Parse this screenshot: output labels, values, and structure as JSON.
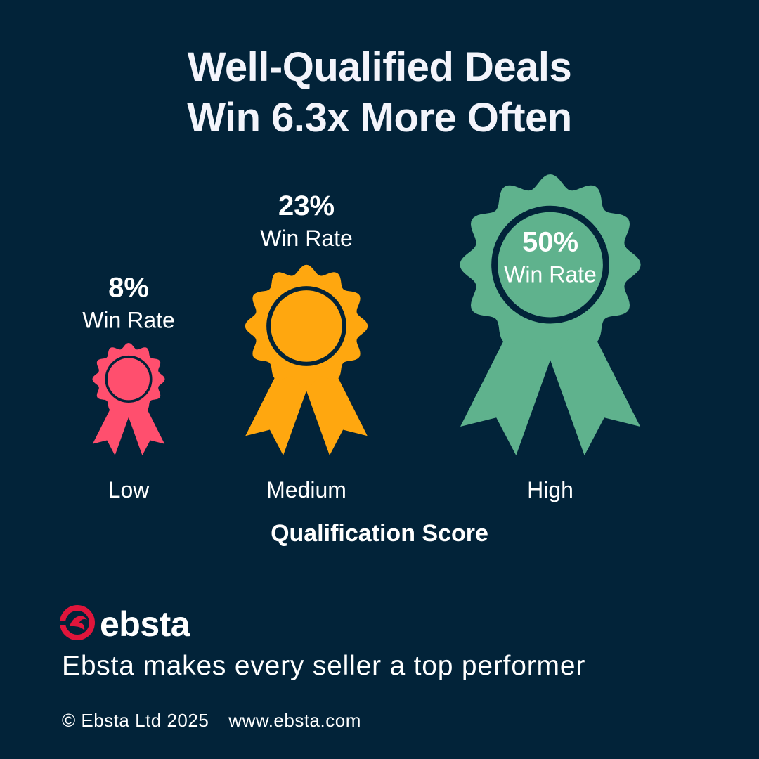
{
  "title": {
    "line1": "Well-Qualified Deals",
    "line2": "Win 6.3x More Often"
  },
  "colors": {
    "background": "#022339",
    "low": "#ff4f6e",
    "medium": "#ffa70f",
    "high": "#5fb28d",
    "text": "#ffffff"
  },
  "chart_data": {
    "type": "bar",
    "categories": [
      "Low",
      "Medium",
      "High"
    ],
    "values": [
      8,
      23,
      50
    ],
    "value_labels": [
      "8%",
      "23%",
      "50%"
    ],
    "value_sublabel": "Win Rate",
    "xlabel": "Qualification Score",
    "ylabel": "",
    "unit": "%",
    "grid": false,
    "legend": "none",
    "marker": "rosette-ribbon-icon"
  },
  "branding": {
    "logo_icon": "ebsta-bird-logo-icon",
    "logo_text": "ebsta",
    "tagline": "Ebsta makes every seller a top performer",
    "copyright": "© Ebsta Ltd 2025",
    "website": "www.ebsta.com"
  }
}
